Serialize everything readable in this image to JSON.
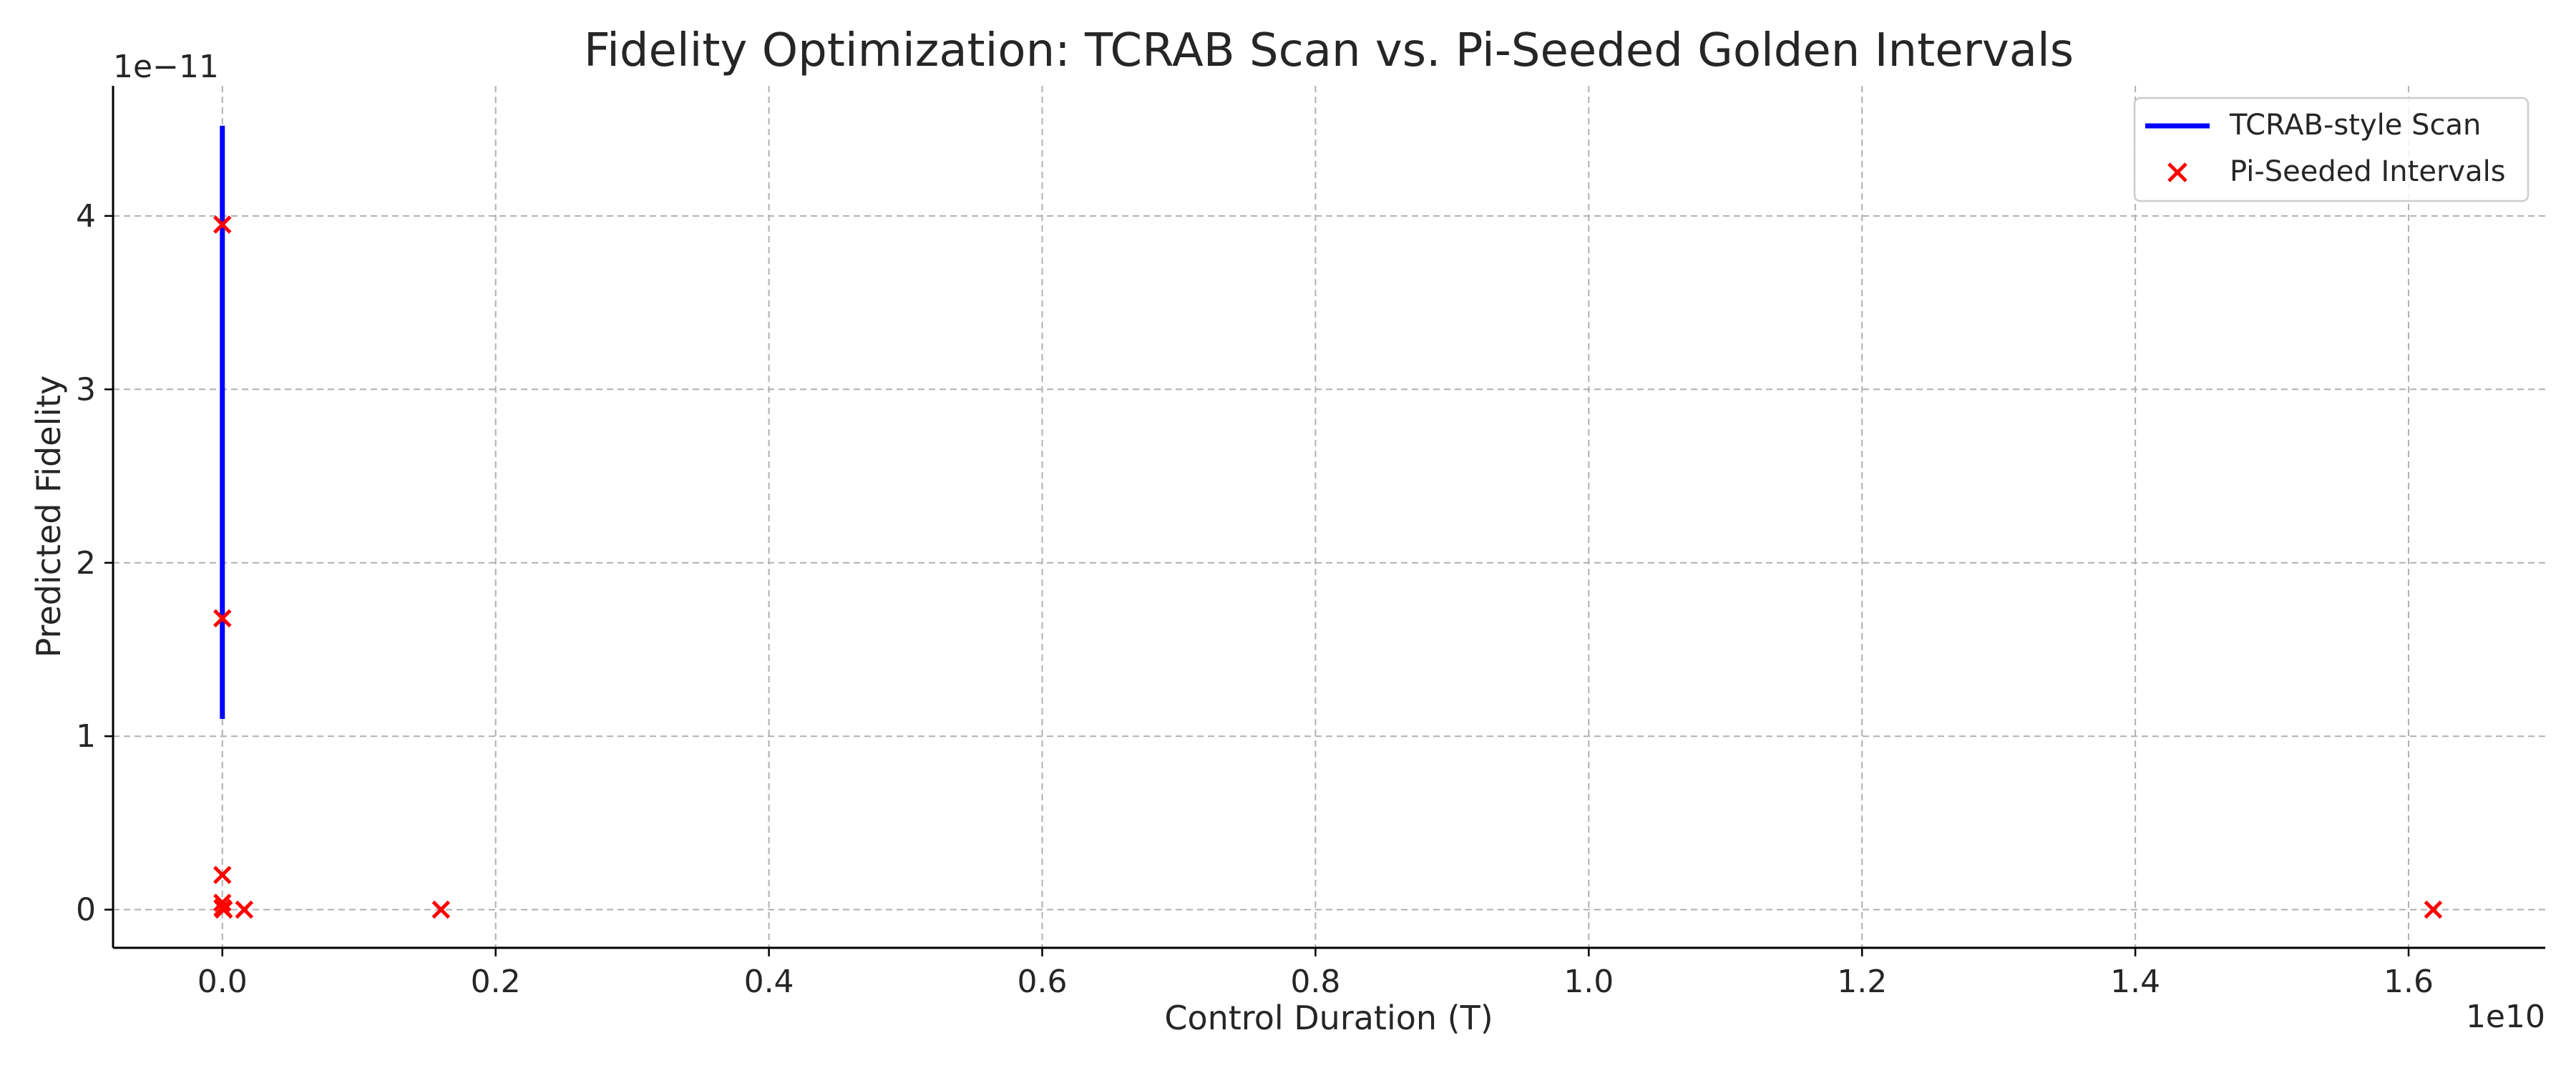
{
  "chart_data": {
    "type": "line",
    "title": "Fidelity Optimization: TCRAB Scan vs. Pi-Seeded Golden Intervals",
    "xlabel": "Control Duration (T)",
    "ylabel": "Predicted Fidelity",
    "x_offset_text": "1e10",
    "y_offset_text": "1e−11",
    "x_multiplier": 10000000000.0,
    "y_multiplier": 1e-11,
    "xlim": [
      -800000000,
      17000000000
    ],
    "ylim": [
      -2.2e-12,
      4.75e-11
    ],
    "x_ticks": [
      0,
      2000000000,
      4000000000,
      6000000000,
      8000000000,
      10000000000,
      12000000000,
      14000000000,
      16000000000
    ],
    "x_tick_labels": [
      "0.0",
      "0.2",
      "0.4",
      "0.6",
      "0.8",
      "1.0",
      "1.2",
      "1.4",
      "1.6"
    ],
    "y_ticks": [
      0,
      1e-11,
      2e-11,
      3e-11,
      4e-11
    ],
    "y_tick_labels": [
      "0",
      "1",
      "2",
      "3",
      "4"
    ],
    "grid": true,
    "legend_position": "top-right",
    "series": [
      {
        "name": "TCRAB-style Scan",
        "kind": "line",
        "color": "#0000ff",
        "x": [
          1,
          5,
          10,
          20,
          30,
          40,
          50
        ],
        "y": [
          1.1e-11,
          1.7e-11,
          2.5e-11,
          3.3e-11,
          3.9e-11,
          4.3e-11,
          4.52e-11
        ]
      },
      {
        "name": "Pi-Seeded Intervals",
        "kind": "scatter",
        "marker": "x",
        "color": "#ff0000",
        "x": [
          3.14,
          31.4,
          3140,
          31400,
          1000000,
          10000000,
          160000000,
          1600000000,
          16180000000
        ],
        "y": [
          3.95e-11,
          1.68e-11,
          2e-12,
          4e-13,
          1e-13,
          0,
          0,
          0,
          0
        ]
      }
    ]
  }
}
